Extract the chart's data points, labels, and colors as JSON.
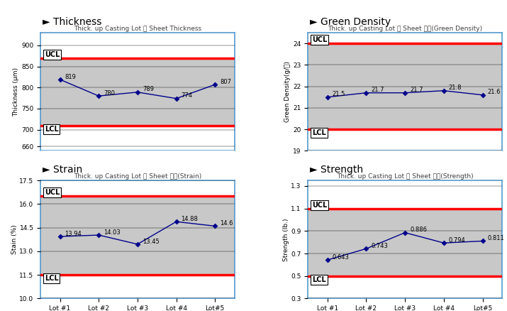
{
  "lots": [
    "Lot #1",
    "Lot #2",
    "Lot #3",
    "Lot #4",
    "Lot#5"
  ],
  "thickness": {
    "title": "Thick. up Casting Lot 별 Sheet Thickness",
    "ylabel": "Thickness (μm)",
    "xlabel": "Thick. up Casting Lot",
    "values": [
      819,
      780,
      789,
      774,
      807
    ],
    "value_labels": [
      "819",
      "780",
      "789",
      "774",
      "807"
    ],
    "ucl": 870,
    "lcl": 710,
    "ylim": [
      650,
      930
    ],
    "yticks": [
      660,
      700,
      750,
      800,
      850,
      900
    ]
  },
  "green_density": {
    "title": "Thick. up Casting Lot 별 Sheet 특성(Green Density)",
    "ylabel": "Green Density(g/㎡)",
    "xlabel": "Thick. up Casting Lot",
    "values": [
      21.5,
      21.7,
      21.7,
      21.8,
      21.6
    ],
    "value_labels": [
      "21.5",
      "21.7",
      "21.7",
      "21.8",
      "21.6"
    ],
    "ucl": 24.0,
    "lcl": 20.0,
    "ylim": [
      19.0,
      24.5
    ],
    "yticks": [
      19,
      20,
      21,
      22,
      23,
      24
    ]
  },
  "strain": {
    "title": "Thick. up Casting Lot 별 Sheet 특성(Strain)",
    "ylabel": "Stain (%)",
    "xlabel": "Thick. up Casting Lot",
    "values": [
      13.94,
      14.03,
      13.45,
      14.88,
      14.6
    ],
    "value_labels": [
      "13.94",
      "14.03",
      "13.45",
      "14.88",
      "14.6"
    ],
    "ucl": 16.5,
    "lcl": 11.5,
    "ylim": [
      10.0,
      17.5
    ],
    "yticks": [
      10,
      11.5,
      13,
      14.5,
      16,
      17.5
    ]
  },
  "strength": {
    "title": "Thick. up Casting Lot 별 Sheet 특성(Strength)",
    "ylabel": "Strength (Ib.)",
    "xlabel": "Thick. up Casting Lot",
    "values": [
      0.643,
      0.743,
      0.886,
      0.794,
      0.811
    ],
    "value_labels": [
      "0.643",
      "0.743",
      "0.886",
      "0.794",
      "0.811"
    ],
    "ucl": 1.1,
    "lcl": 0.5,
    "ylim": [
      0.3,
      1.35
    ],
    "yticks": [
      0.3,
      0.5,
      0.7,
      0.9,
      1.1,
      1.3
    ]
  },
  "line_color": "#00008B",
  "ucl_color": "#FF0000",
  "lcl_color": "#FF0000",
  "band_color": "#C8C8C8",
  "title_color": "#404040",
  "section_headers": [
    "Thickness",
    "Green Density",
    "Strain",
    "Strength"
  ],
  "border_color": "#5599CC",
  "label_fontsize": 6.5,
  "title_fontsize": 6.5,
  "header_fontsize": 10,
  "tick_fontsize": 6.5,
  "value_fontsize": 6.0
}
